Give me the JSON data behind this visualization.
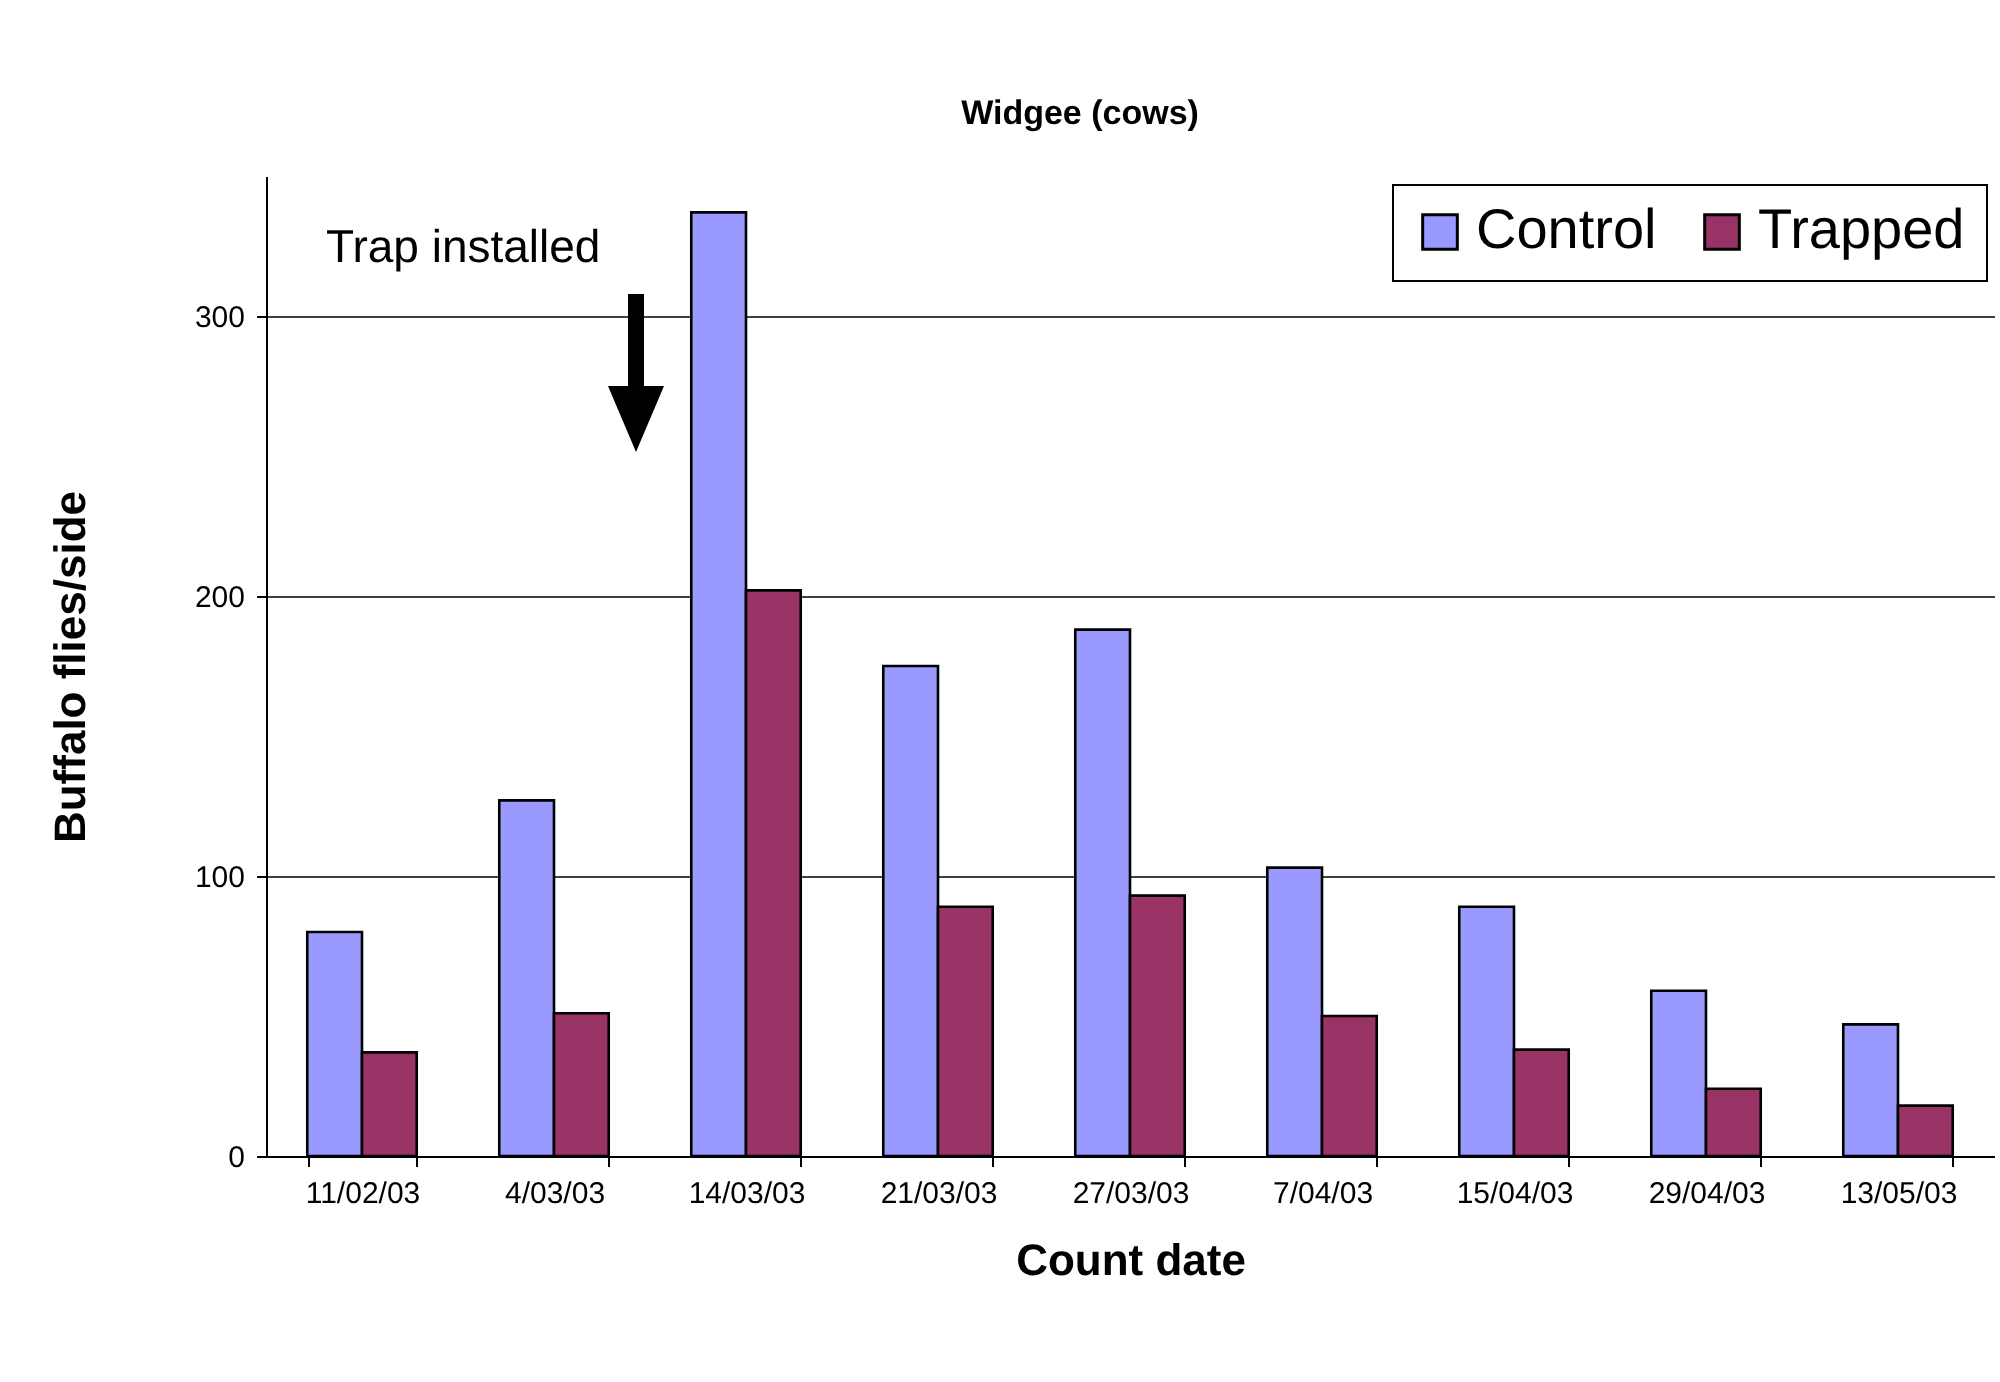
{
  "chart_data": {
    "type": "bar",
    "title": "Widgee (cows)",
    "xlabel": "Count date",
    "ylabel": "Buffalo flies/side",
    "categories": [
      "11/02/03",
      "4/03/03",
      "14/03/03",
      "21/03/03",
      "27/03/03",
      "7/04/03",
      "15/04/03",
      "29/04/03",
      "13/05/03"
    ],
    "series": [
      {
        "name": "Control",
        "color": "#9999ff",
        "values": [
          80,
          127,
          337,
          175,
          188,
          103,
          89,
          59,
          47
        ]
      },
      {
        "name": "Trapped",
        "color": "#993366",
        "values": [
          37,
          51,
          202,
          89,
          93,
          50,
          38,
          24,
          18
        ]
      }
    ],
    "ylim": [
      0,
      350
    ],
    "yticks": [
      0,
      100,
      200,
      300
    ],
    "grid": "y",
    "legend": "top right",
    "annotations": [
      "Trap installed"
    ]
  }
}
